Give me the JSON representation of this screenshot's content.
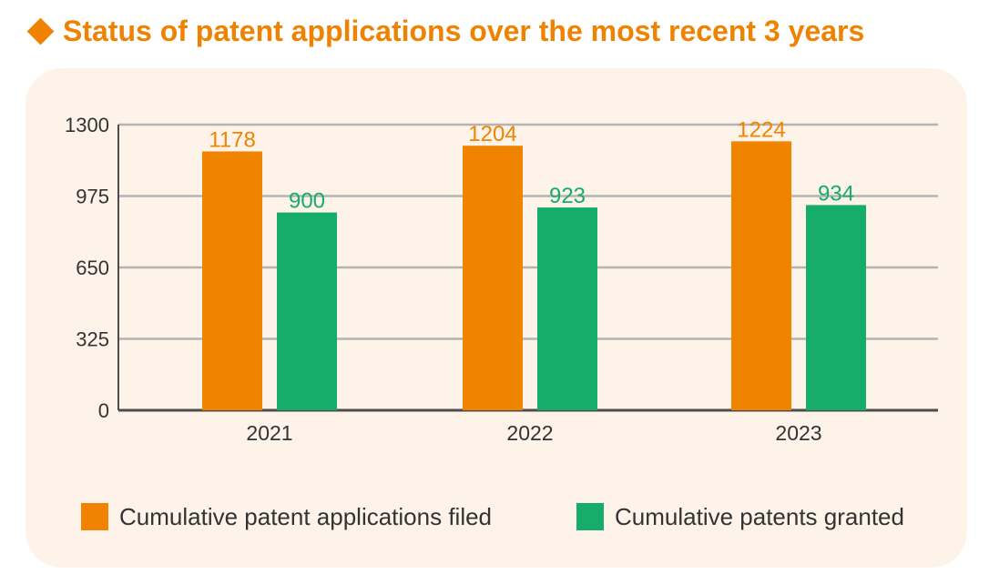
{
  "header": {
    "title": "Status of patent applications over the most recent 3 years"
  },
  "colors": {
    "accent": "#ef8200",
    "filed": "#f08300",
    "granted": "#16ad6a",
    "panel_bg": "#fdf3e9",
    "grid": "#b4b4b4",
    "axis": "#4d4d4d"
  },
  "chart_data": {
    "type": "bar",
    "title": "Status of patent applications over the most recent 3 years",
    "categories": [
      "2021",
      "2022",
      "2023"
    ],
    "series": [
      {
        "name": "Cumulative patent applications filed",
        "values": [
          1178,
          1204,
          1224
        ],
        "color": "#f08300"
      },
      {
        "name": "Cumulative patents granted",
        "values": [
          900,
          923,
          934
        ],
        "color": "#16ad6a"
      }
    ],
    "ylim": [
      0,
      1300
    ],
    "yticks": [
      0,
      325,
      650,
      975,
      1300
    ],
    "xlabel": "",
    "ylabel": "",
    "grid": true,
    "legend": "bottom",
    "data_labels": true
  }
}
